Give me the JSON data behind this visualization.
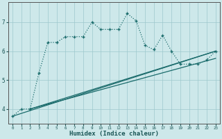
{
  "xlabel": "Humidex (Indice chaleur)",
  "bg_color": "#cde8ea",
  "grid_color": "#9dc8cc",
  "line_color": "#1a6b6b",
  "x_ticks": [
    0,
    1,
    2,
    3,
    4,
    5,
    6,
    7,
    8,
    9,
    10,
    11,
    12,
    13,
    14,
    15,
    16,
    17,
    18,
    19,
    20,
    21,
    22,
    23
  ],
  "y_ticks": [
    4,
    5,
    6,
    7
  ],
  "ylim": [
    3.5,
    7.7
  ],
  "xlim": [
    -0.5,
    23.5
  ],
  "series1_x": [
    0,
    1,
    2,
    3,
    4,
    5,
    6,
    7,
    8,
    9,
    10,
    11,
    12,
    13,
    14,
    15,
    16,
    17,
    18,
    19,
    20,
    21,
    22,
    23
  ],
  "series1_y": [
    3.75,
    4.0,
    4.0,
    5.25,
    6.3,
    6.3,
    6.5,
    6.5,
    6.5,
    7.0,
    6.75,
    6.75,
    6.75,
    7.3,
    7.05,
    6.2,
    6.05,
    6.55,
    6.0,
    5.55,
    5.55,
    5.55,
    5.7,
    6.0
  ],
  "series2_x": [
    0,
    23
  ],
  "series2_y": [
    3.75,
    6.0
  ],
  "series3_x": [
    2,
    23
  ],
  "series3_y": [
    4.0,
    6.0
  ],
  "series4_x": [
    2,
    23
  ],
  "series4_y": [
    4.0,
    5.75
  ]
}
